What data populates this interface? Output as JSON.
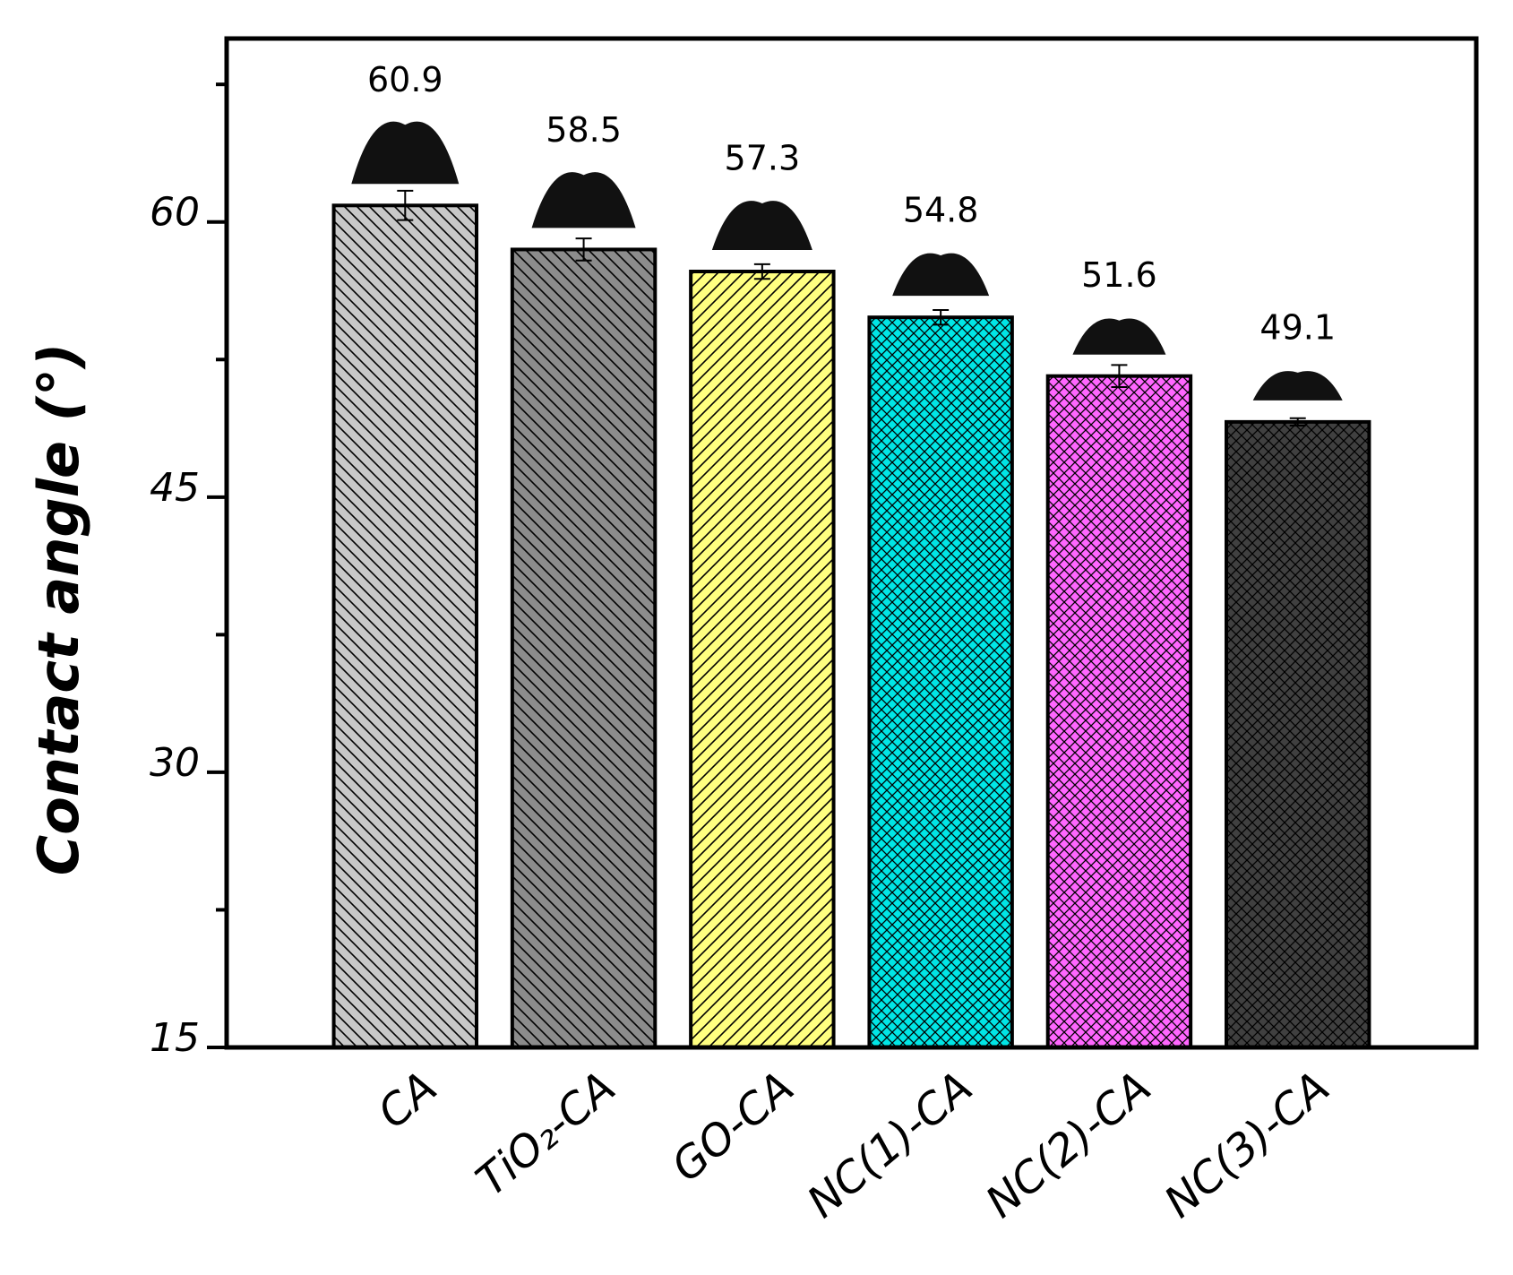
{
  "chart_data": {
    "type": "bar",
    "ylabel": "Contact angle (°)",
    "categories": [
      "CA",
      "TiO₂-CA",
      "GO-CA",
      "NC(1)-CA",
      "NC(2)-CA",
      "NC(3)-CA"
    ],
    "values": [
      60.9,
      58.5,
      57.3,
      54.8,
      51.6,
      49.1
    ],
    "errors": [
      0.8,
      0.6,
      0.4,
      0.4,
      0.6,
      0.2
    ],
    "colors": [
      "#c8c8c8",
      "#8c8c8c",
      "#ffff80",
      "#00e6e6",
      "#ff66ff",
      "#404040"
    ],
    "hatches": [
      "diagonal",
      "diagonal",
      "antidiagonal",
      "cross",
      "cross",
      "cross"
    ],
    "ylim": [
      15,
      70
    ],
    "yticks": [
      15,
      30,
      45,
      60
    ],
    "yminorticks": [
      22.5,
      37.5,
      52.5,
      67.5
    ]
  }
}
